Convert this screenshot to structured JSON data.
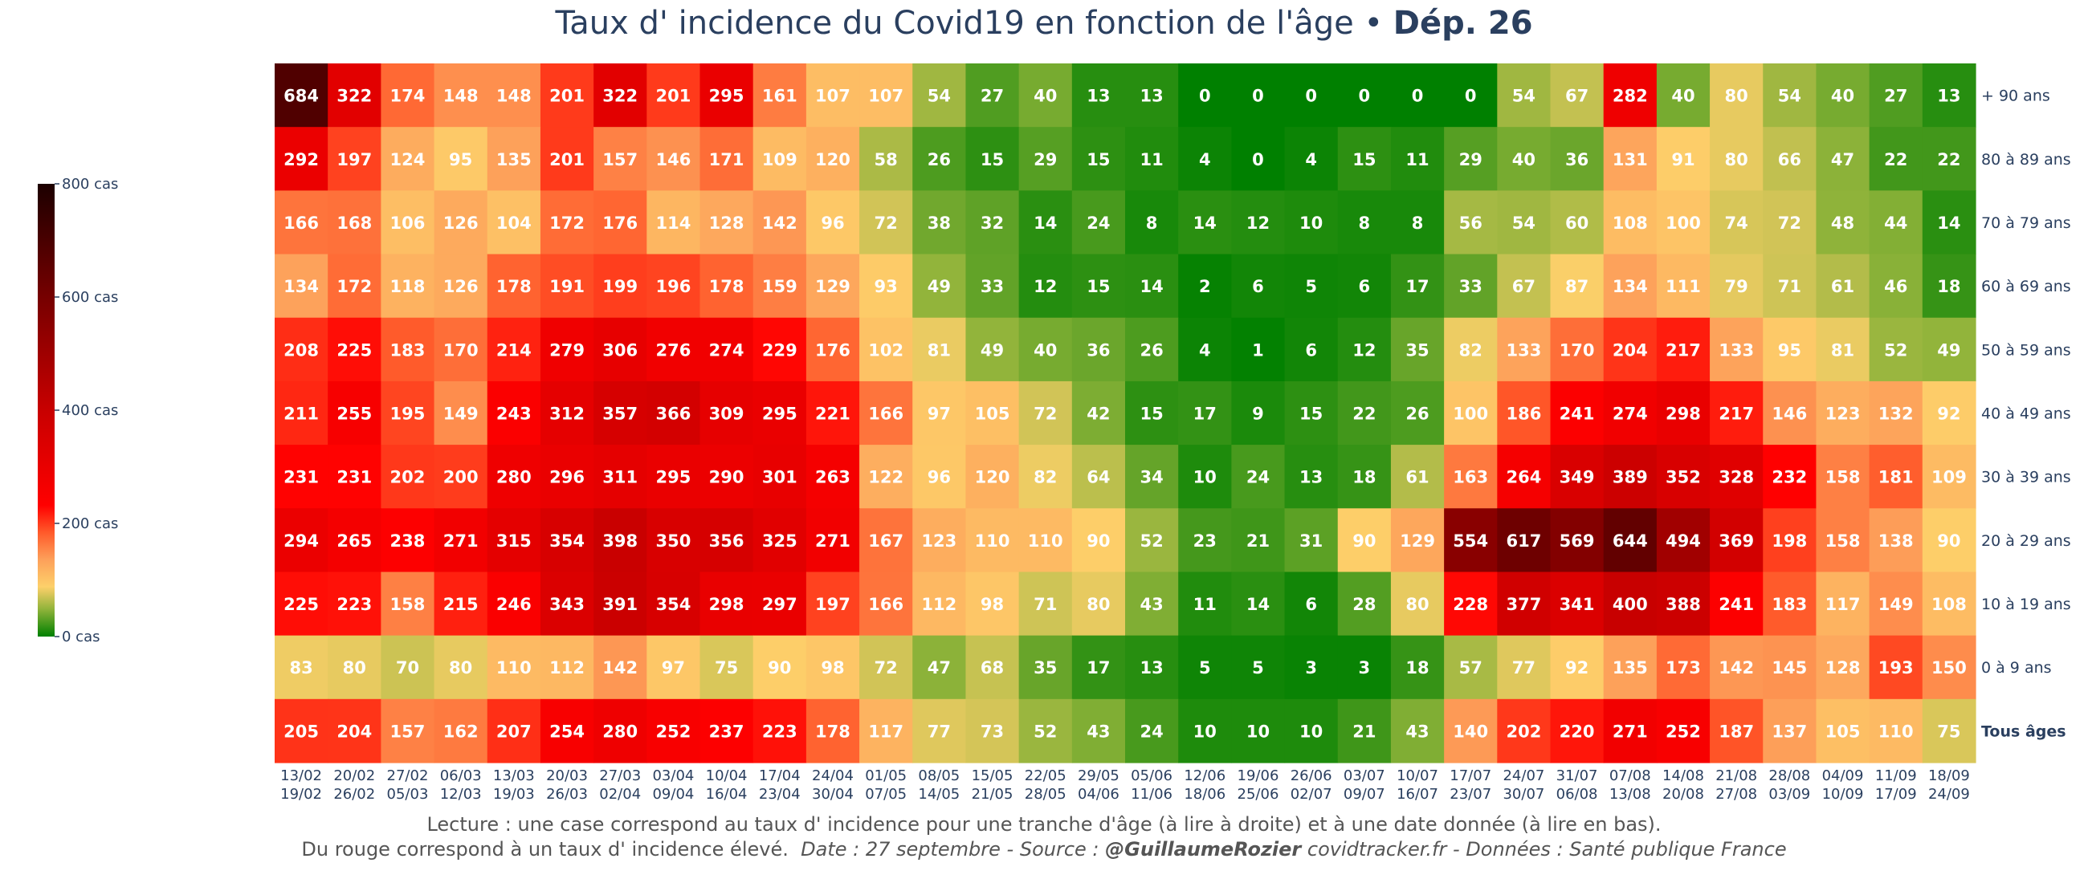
{
  "title": {
    "main": "Taux d' incidence du Covid19 en fonction de l'âge",
    "separator": "•",
    "dept": "Dép. 26"
  },
  "footer": {
    "line1": "Lecture : une case correspond au taux d' incidence pour une tranche d'âge (à lire à droite) et à une date donnée (à lire en bas).",
    "line2_plain": "Du rouge correspond à un taux d' incidence élevé.",
    "line2_italic_a": "Date : 27 septembre - Source :",
    "line2_bold": "@GuillaumeRozier",
    "line2_italic_b": "covidtracker.fr - Données : Santé publique France"
  },
  "colors": {
    "text_dark": "#2a3f5f",
    "scale": [
      [
        0.0,
        "#008000"
      ],
      [
        0.06,
        "#8fb33a"
      ],
      [
        0.11,
        "#fdd06a"
      ],
      [
        0.17,
        "#fda05a"
      ],
      [
        0.23,
        "#ff5a2a"
      ],
      [
        0.29,
        "#ff0000"
      ],
      [
        0.5,
        "#c80000"
      ],
      [
        0.75,
        "#760000"
      ],
      [
        1.0,
        "#1c0000"
      ]
    ]
  },
  "chart_data": {
    "type": "heatmap",
    "zmin": 0,
    "zmax": 800,
    "colorbar": {
      "ticks": [
        0,
        200,
        400,
        600,
        800
      ],
      "tick_labels": [
        "0 cas",
        "200 cas",
        "400 cas",
        "600 cas",
        "800 cas"
      ]
    },
    "x_labels": [
      [
        "13/02",
        "19/02"
      ],
      [
        "20/02",
        "26/02"
      ],
      [
        "27/02",
        "05/03"
      ],
      [
        "06/03",
        "12/03"
      ],
      [
        "13/03",
        "19/03"
      ],
      [
        "20/03",
        "26/03"
      ],
      [
        "27/03",
        "02/04"
      ],
      [
        "03/04",
        "09/04"
      ],
      [
        "10/04",
        "16/04"
      ],
      [
        "17/04",
        "23/04"
      ],
      [
        "24/04",
        "30/04"
      ],
      [
        "01/05",
        "07/05"
      ],
      [
        "08/05",
        "14/05"
      ],
      [
        "15/05",
        "21/05"
      ],
      [
        "22/05",
        "28/05"
      ],
      [
        "29/05",
        "04/06"
      ],
      [
        "05/06",
        "11/06"
      ],
      [
        "12/06",
        "18/06"
      ],
      [
        "19/06",
        "25/06"
      ],
      [
        "26/06",
        "02/07"
      ],
      [
        "03/07",
        "09/07"
      ],
      [
        "10/07",
        "16/07"
      ],
      [
        "17/07",
        "23/07"
      ],
      [
        "24/07",
        "30/07"
      ],
      [
        "31/07",
        "06/08"
      ],
      [
        "07/08",
        "13/08"
      ],
      [
        "14/08",
        "20/08"
      ],
      [
        "21/08",
        "27/08"
      ],
      [
        "28/08",
        "03/09"
      ],
      [
        "04/09",
        "10/09"
      ],
      [
        "11/09",
        "17/09"
      ],
      [
        "18/09",
        "24/09"
      ]
    ],
    "y_labels": [
      "+ 90 ans",
      "80 à 89 ans",
      "70 à 79 ans",
      "60 à 69 ans",
      "50 à 59 ans",
      "40 à 49 ans",
      "30 à 39 ans",
      "20 à 29 ans",
      "10 à 19 ans",
      "0 à 9 ans",
      "Tous âges"
    ],
    "y_bold": [
      false,
      false,
      false,
      false,
      false,
      false,
      false,
      false,
      false,
      false,
      true
    ],
    "z": [
      [
        684,
        322,
        174,
        148,
        148,
        201,
        322,
        201,
        295,
        161,
        107,
        107,
        54,
        27,
        40,
        13,
        13,
        0,
        0,
        0,
        0,
        0,
        0,
        54,
        67,
        282,
        40,
        80,
        54,
        40,
        27,
        13
      ],
      [
        292,
        197,
        124,
        95,
        135,
        201,
        157,
        146,
        171,
        109,
        120,
        58,
        26,
        15,
        29,
        15,
        11,
        4,
        0,
        4,
        15,
        11,
        29,
        40,
        36,
        131,
        91,
        80,
        66,
        47,
        22,
        22
      ],
      [
        166,
        168,
        106,
        126,
        104,
        172,
        176,
        114,
        128,
        142,
        96,
        72,
        38,
        32,
        14,
        24,
        8,
        14,
        12,
        10,
        8,
        8,
        56,
        54,
        60,
        108,
        100,
        74,
        72,
        48,
        44,
        14
      ],
      [
        134,
        172,
        118,
        126,
        178,
        191,
        199,
        196,
        178,
        159,
        129,
        93,
        49,
        33,
        12,
        15,
        14,
        2,
        6,
        5,
        6,
        17,
        33,
        67,
        87,
        134,
        111,
        79,
        71,
        61,
        46,
        18
      ],
      [
        208,
        225,
        183,
        170,
        214,
        279,
        306,
        276,
        274,
        229,
        176,
        102,
        81,
        49,
        40,
        36,
        26,
        4,
        1,
        6,
        12,
        35,
        82,
        133,
        170,
        204,
        217,
        133,
        95,
        81,
        52,
        49
      ],
      [
        211,
        255,
        195,
        149,
        243,
        312,
        357,
        366,
        309,
        295,
        221,
        166,
        97,
        105,
        72,
        42,
        15,
        17,
        9,
        15,
        22,
        26,
        100,
        186,
        241,
        274,
        298,
        217,
        146,
        123,
        132,
        92
      ],
      [
        231,
        231,
        202,
        200,
        280,
        296,
        311,
        295,
        290,
        301,
        263,
        122,
        96,
        120,
        82,
        64,
        34,
        10,
        24,
        13,
        18,
        61,
        163,
        264,
        349,
        389,
        352,
        328,
        232,
        158,
        181,
        109
      ],
      [
        294,
        265,
        238,
        271,
        315,
        354,
        398,
        350,
        356,
        325,
        271,
        167,
        123,
        110,
        110,
        90,
        52,
        23,
        21,
        31,
        90,
        129,
        554,
        617,
        569,
        644,
        494,
        369,
        198,
        158,
        138,
        90
      ],
      [
        225,
        223,
        158,
        215,
        246,
        343,
        391,
        354,
        298,
        297,
        197,
        166,
        112,
        98,
        71,
        80,
        43,
        11,
        14,
        6,
        28,
        80,
        228,
        377,
        341,
        400,
        388,
        241,
        183,
        117,
        149,
        108
      ],
      [
        83,
        80,
        70,
        80,
        110,
        112,
        142,
        97,
        75,
        90,
        98,
        72,
        47,
        68,
        35,
        17,
        13,
        5,
        5,
        3,
        3,
        18,
        57,
        77,
        92,
        135,
        173,
        142,
        145,
        128,
        193,
        150
      ],
      [
        205,
        204,
        157,
        162,
        207,
        254,
        280,
        252,
        237,
        223,
        178,
        117,
        77,
        73,
        52,
        43,
        24,
        10,
        10,
        10,
        21,
        43,
        140,
        202,
        220,
        271,
        252,
        187,
        137,
        105,
        110,
        75
      ]
    ]
  }
}
